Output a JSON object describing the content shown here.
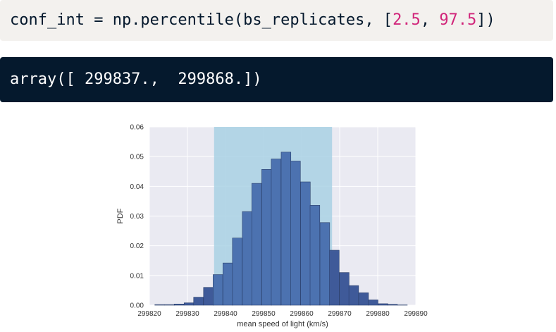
{
  "code_cell": {
    "before": "conf_int = np.percentile(bs_replicates, [",
    "arg1": "2.5",
    "sep": ", ",
    "arg2": "97.5",
    "after": "])"
  },
  "output_cell": {
    "text": "array([ 299837.,  299868.])"
  },
  "colors": {
    "code_bg": "#f3f1ee",
    "output_bg": "#05192d",
    "number": "#d1257a",
    "plot_bg": "#eaeaf2",
    "bar_inside": "#4c72b0",
    "bar_outside": "#3f5a99",
    "ci_band": "#a9d1e4"
  },
  "chart_data": {
    "type": "bar",
    "xlabel": "mean speed of light (km/s)",
    "ylabel": "PDF",
    "xlim": [
      299820,
      299890
    ],
    "ylim": [
      0,
      0.06
    ],
    "xticks": [
      "299820",
      "299830",
      "299840",
      "299850",
      "299860",
      "299870",
      "299880",
      "299890"
    ],
    "yticks": [
      "0.00",
      "0.01",
      "0.02",
      "0.03",
      "0.04",
      "0.05",
      "0.06"
    ],
    "grid": true,
    "confidence_interval": [
      299837,
      299868
    ],
    "bin_width": 2.55,
    "bins": [
      {
        "x": 299822.7,
        "y": 0.0002
      },
      {
        "x": 299825.3,
        "y": 0.0002
      },
      {
        "x": 299827.8,
        "y": 0.0004
      },
      {
        "x": 299830.4,
        "y": 0.0008
      },
      {
        "x": 299832.9,
        "y": 0.0027
      },
      {
        "x": 299835.5,
        "y": 0.006
      },
      {
        "x": 299838.0,
        "y": 0.0103
      },
      {
        "x": 299840.6,
        "y": 0.0142
      },
      {
        "x": 299843.1,
        "y": 0.0226
      },
      {
        "x": 299845.7,
        "y": 0.0315
      },
      {
        "x": 299848.2,
        "y": 0.041
      },
      {
        "x": 299850.8,
        "y": 0.0457
      },
      {
        "x": 299853.3,
        "y": 0.0492
      },
      {
        "x": 299855.9,
        "y": 0.0515
      },
      {
        "x": 299858.4,
        "y": 0.0485
      },
      {
        "x": 299861.0,
        "y": 0.0415
      },
      {
        "x": 299863.5,
        "y": 0.0336
      },
      {
        "x": 299866.1,
        "y": 0.0278
      },
      {
        "x": 299868.6,
        "y": 0.0185
      },
      {
        "x": 299871.2,
        "y": 0.011
      },
      {
        "x": 299873.7,
        "y": 0.0066
      },
      {
        "x": 299876.3,
        "y": 0.0042
      },
      {
        "x": 299878.8,
        "y": 0.0018
      },
      {
        "x": 299881.4,
        "y": 0.0005
      },
      {
        "x": 299883.9,
        "y": 0.0003
      },
      {
        "x": 299886.5,
        "y": 0.0001
      }
    ]
  }
}
